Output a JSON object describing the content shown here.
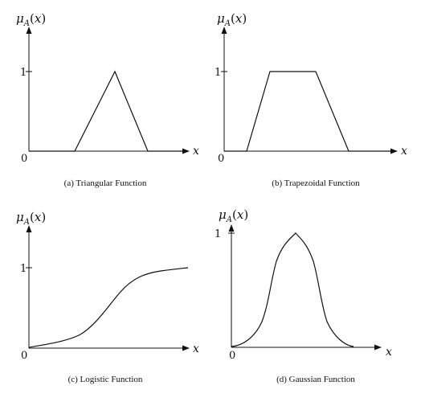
{
  "axis_label_y": "μA(x)",
  "axis_label_x": "x",
  "tick_one": "1",
  "tick_zero": "0",
  "panels": [
    {
      "id": "a",
      "caption": "(a) Triangular Function",
      "kind": "triangular"
    },
    {
      "id": "b",
      "caption": "(b) Trapezoidal Function",
      "kind": "trapezoidal"
    },
    {
      "id": "c",
      "caption": "(c) Logistic Function",
      "kind": "logistic"
    },
    {
      "id": "d",
      "caption": "(d) Gaussian Function",
      "kind": "gaussian"
    }
  ]
}
